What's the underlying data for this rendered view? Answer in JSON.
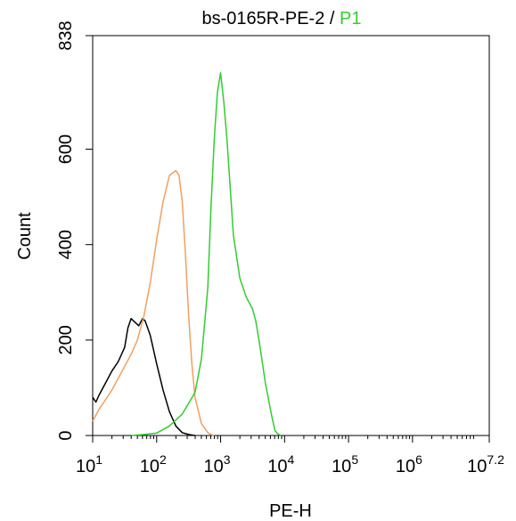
{
  "chart_data": {
    "type": "line",
    "title": {
      "prefix": "bs-0165R-PE-2",
      "separator": " / ",
      "gate": "P1",
      "gate_color": "#33cc33"
    },
    "xlabel": "PE-H",
    "ylabel": "Count",
    "x_scale": "log",
    "xlim": [
      1,
      7.2
    ],
    "ylim": [
      0,
      838
    ],
    "x_ticks": [
      {
        "base": "10",
        "exp": "1",
        "value": 1
      },
      {
        "base": "10",
        "exp": "2",
        "value": 2
      },
      {
        "base": "10",
        "exp": "3",
        "value": 3
      },
      {
        "base": "10",
        "exp": "4",
        "value": 4
      },
      {
        "base": "10",
        "exp": "5",
        "value": 5
      },
      {
        "base": "10",
        "exp": "6",
        "value": 6
      },
      {
        "base": "10",
        "exp": "7.2",
        "value": 7.2
      }
    ],
    "y_ticks": [
      {
        "label": "0",
        "value": 0
      },
      {
        "label": "200",
        "value": 200
      },
      {
        "label": "400",
        "value": 400
      },
      {
        "label": "600",
        "value": 600
      },
      {
        "label": "838",
        "value": 838
      }
    ],
    "series": [
      {
        "color": "#000000",
        "x": [
          1.0,
          1.05,
          1.1,
          1.2,
          1.3,
          1.4,
          1.5,
          1.55,
          1.6,
          1.68,
          1.72,
          1.78,
          1.82,
          1.9,
          2.0,
          2.1,
          2.2,
          2.3,
          2.4,
          2.5,
          2.6
        ],
        "y": [
          80,
          70,
          85,
          110,
          135,
          155,
          185,
          225,
          245,
          235,
          230,
          245,
          240,
          210,
          150,
          95,
          50,
          20,
          6,
          2,
          0
        ]
      },
      {
        "color": "#f0a060",
        "x": [
          1.0,
          1.1,
          1.2,
          1.3,
          1.4,
          1.5,
          1.6,
          1.7,
          1.8,
          1.9,
          2.0,
          2.1,
          2.2,
          2.3,
          2.35,
          2.4,
          2.45,
          2.5,
          2.55,
          2.6,
          2.7,
          2.8,
          2.85,
          2.9
        ],
        "y": [
          30,
          55,
          75,
          95,
          120,
          145,
          170,
          200,
          250,
          320,
          410,
          490,
          545,
          555,
          545,
          490,
          380,
          250,
          150,
          80,
          25,
          6,
          2,
          0
        ]
      },
      {
        "color": "#33cc33",
        "x": [
          1.6,
          1.8,
          2.0,
          2.2,
          2.4,
          2.6,
          2.7,
          2.8,
          2.85,
          2.9,
          2.95,
          3.0,
          3.05,
          3.1,
          3.15,
          3.2,
          3.3,
          3.4,
          3.5,
          3.55,
          3.6,
          3.7,
          3.8,
          3.85,
          3.9,
          3.95
        ],
        "y": [
          0,
          2,
          5,
          20,
          45,
          90,
          160,
          310,
          480,
          620,
          720,
          760,
          700,
          620,
          520,
          420,
          330,
          290,
          265,
          240,
          200,
          110,
          40,
          10,
          3,
          0
        ]
      }
    ],
    "grid": false,
    "legend": "none"
  }
}
